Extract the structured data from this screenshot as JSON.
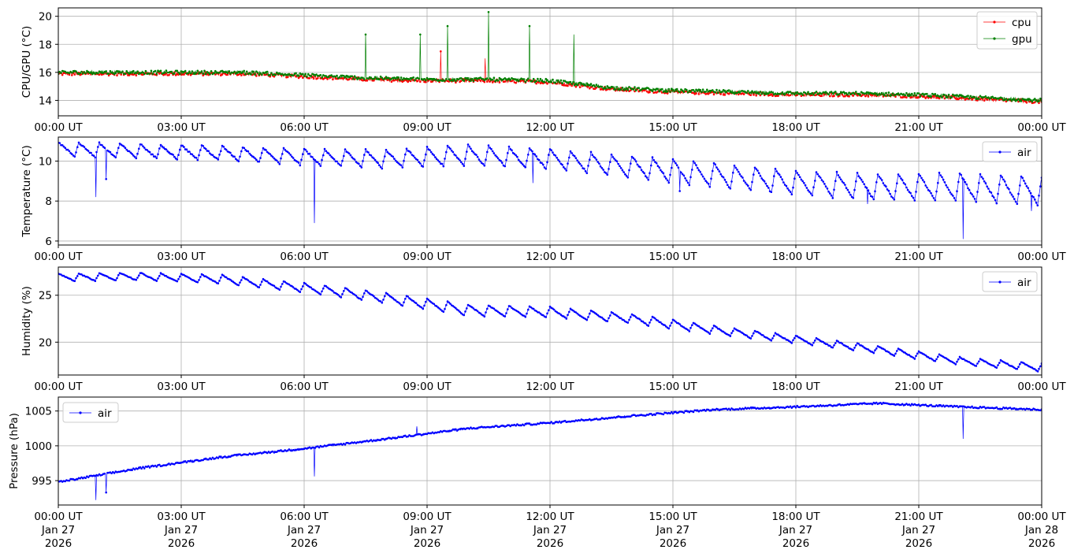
{
  "figure": {
    "x_ticks": [
      "00:00 UT",
      "03:00 UT",
      "06:00 UT",
      "09:00 UT",
      "12:00 UT",
      "15:00 UT",
      "18:00 UT",
      "21:00 UT",
      "00:00 UT"
    ],
    "x_ticks_bottom_dates": [
      "Jan 27",
      "Jan 27",
      "Jan 27",
      "Jan 27",
      "Jan 27",
      "Jan 27",
      "Jan 27",
      "Jan 27",
      "Jan 28"
    ],
    "x_ticks_bottom_years": [
      "2026",
      "2026",
      "2026",
      "2026",
      "2026",
      "2026",
      "2026",
      "2026",
      "2026"
    ]
  },
  "colors": {
    "cpu": "#ff0000",
    "gpu": "#008000",
    "air": "#0000ff",
    "grid": "#b0b0b0"
  },
  "chart_data": [
    {
      "type": "line",
      "ylabel": "CPU/GPU (°C)",
      "xlim": [
        "2026-01-27 00:00",
        "2026-01-28 00:00"
      ],
      "ylim": [
        12.9,
        20.6
      ],
      "yticks": [
        14,
        16,
        18,
        20
      ],
      "grid": true,
      "legend": "top-right",
      "step": 0.5,
      "series": [
        {
          "name": "cpu",
          "color": "#ff0000",
          "x": [
            "00:00",
            "01:30",
            "03:00",
            "04:30",
            "06:00",
            "07:30",
            "09:00",
            "10:30",
            "12:00",
            "13:30",
            "15:00",
            "16:30",
            "18:00",
            "19:30",
            "21:00",
            "22:30",
            "24:00"
          ],
          "values": [
            15.9,
            15.9,
            15.9,
            15.9,
            15.7,
            15.5,
            15.4,
            15.4,
            15.3,
            14.8,
            14.6,
            14.5,
            14.4,
            14.4,
            14.3,
            14.1,
            13.9
          ],
          "spikes": [
            {
              "x": "09:20",
              "y": 17.5
            },
            {
              "x": "10:25",
              "y": 17.0
            }
          ]
        },
        {
          "name": "gpu",
          "color": "#008000",
          "x": [
            "00:00",
            "01:30",
            "03:00",
            "04:30",
            "06:00",
            "07:30",
            "09:00",
            "10:30",
            "12:00",
            "13:30",
            "15:00",
            "16:30",
            "18:00",
            "19:30",
            "21:00",
            "22:30",
            "24:00"
          ],
          "values": [
            16.0,
            16.0,
            16.0,
            16.0,
            15.8,
            15.6,
            15.5,
            15.5,
            15.4,
            14.9,
            14.7,
            14.6,
            14.5,
            14.5,
            14.4,
            14.2,
            14.0
          ],
          "spikes": [
            {
              "x": "07:30",
              "y": 18.7
            },
            {
              "x": "08:50",
              "y": 18.7
            },
            {
              "x": "09:30",
              "y": 19.3
            },
            {
              "x": "10:30",
              "y": 20.3
            },
            {
              "x": "11:30",
              "y": 19.3
            },
            {
              "x": "12:35",
              "y": 18.7
            }
          ]
        }
      ]
    },
    {
      "type": "line",
      "ylabel": "Temperature (°C)",
      "xlim": [
        "2026-01-27 00:00",
        "2026-01-28 00:00"
      ],
      "ylim": [
        5.8,
        11.2
      ],
      "yticks": [
        6,
        8,
        10
      ],
      "grid": true,
      "legend": "top-right",
      "series": [
        {
          "name": "air",
          "color": "#0000ff",
          "x": [
            "00:00",
            "02:00",
            "04:00",
            "06:00",
            "08:00",
            "10:00",
            "12:00",
            "14:00",
            "16:00",
            "18:00",
            "20:00",
            "22:00",
            "24:00"
          ],
          "values": [
            10.6,
            10.5,
            10.4,
            10.2,
            10.1,
            10.3,
            10.1,
            9.7,
            9.3,
            8.9,
            8.7,
            8.7,
            8.5
          ],
          "amplitude": [
            0.35,
            0.35,
            0.35,
            0.4,
            0.45,
            0.5,
            0.5,
            0.55,
            0.6,
            0.6,
            0.65,
            0.7,
            0.7
          ],
          "dips": [
            {
              "x": "00:55",
              "y": 8.2
            },
            {
              "x": "01:10",
              "y": 9.1
            },
            {
              "x": "06:15",
              "y": 6.9
            },
            {
              "x": "11:35",
              "y": 8.9
            },
            {
              "x": "15:10",
              "y": 8.5
            },
            {
              "x": "19:45",
              "y": 7.85
            },
            {
              "x": "22:05",
              "y": 6.1
            },
            {
              "x": "23:45",
              "y": 7.5
            }
          ]
        }
      ]
    },
    {
      "type": "line",
      "ylabel": "Humidity (%)",
      "xlim": [
        "2026-01-27 00:00",
        "2026-01-28 00:00"
      ],
      "ylim": [
        16.5,
        28.0
      ],
      "yticks": [
        20,
        25
      ],
      "grid": true,
      "legend": "top-right",
      "series": [
        {
          "name": "air",
          "color": "#0000ff",
          "x": [
            "00:00",
            "02:00",
            "04:00",
            "06:00",
            "08:00",
            "10:00",
            "12:00",
            "14:00",
            "16:00",
            "18:00",
            "20:00",
            "22:00",
            "24:00"
          ],
          "values": [
            26.9,
            27.0,
            26.7,
            25.8,
            24.7,
            23.4,
            23.2,
            22.5,
            21.3,
            20.3,
            19.2,
            18.0,
            17.3
          ],
          "amplitude": [
            0.4,
            0.4,
            0.45,
            0.5,
            0.55,
            0.6,
            0.55,
            0.5,
            0.45,
            0.4,
            0.4,
            0.4,
            0.4
          ],
          "dips": [
            {
              "x": "23:55",
              "y": 16.8
            }
          ]
        }
      ]
    },
    {
      "type": "line",
      "ylabel": "Pressure (hPa)",
      "xlim": [
        "2026-01-27 00:00",
        "2026-01-28 00:00"
      ],
      "ylim": [
        991.5,
        1007.0
      ],
      "yticks": [
        995,
        1000,
        1005
      ],
      "grid": true,
      "legend": "top-left",
      "series": [
        {
          "name": "air",
          "color": "#0000ff",
          "x": [
            "00:00",
            "02:00",
            "04:00",
            "06:00",
            "08:00",
            "10:00",
            "12:00",
            "14:00",
            "16:00",
            "18:00",
            "20:00",
            "22:00",
            "24:00"
          ],
          "values": [
            994.8,
            996.8,
            998.4,
            999.6,
            1001.0,
            1002.5,
            1003.3,
            1004.3,
            1005.2,
            1005.6,
            1006.1,
            1005.6,
            1005.2
          ],
          "dips": [
            {
              "x": "00:55",
              "y": 992.2
            },
            {
              "x": "01:10",
              "y": 993.3
            },
            {
              "x": "06:15",
              "y": 995.6
            },
            {
              "x": "22:05",
              "y": 1001.0
            }
          ],
          "spikes": [
            {
              "x": "08:45",
              "y": 1002.8
            }
          ]
        }
      ]
    }
  ]
}
